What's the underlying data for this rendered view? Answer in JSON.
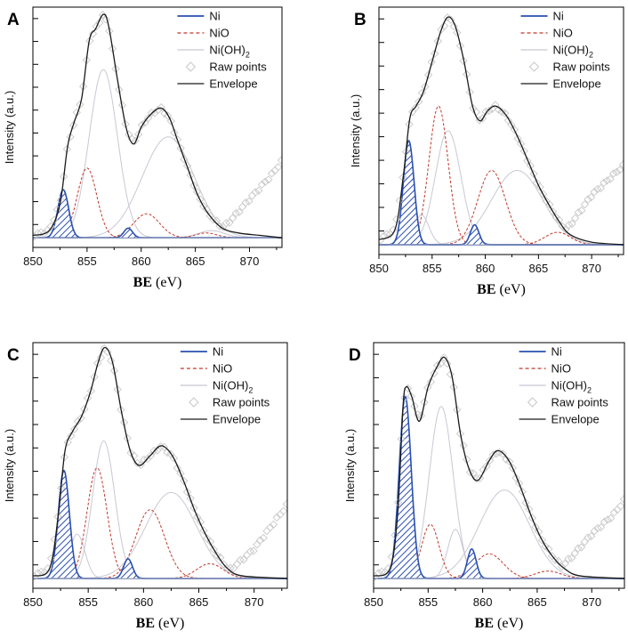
{
  "figure": {
    "common": {
      "x_range": [
        850,
        873
      ],
      "x_ticks": [
        "850",
        "855",
        "860",
        "865",
        "870"
      ],
      "xlabel_bold": "BE",
      "xlabel_unit": "(eV)",
      "ylabel": "Intensity (a.u.)",
      "legend": [
        {
          "key": "Ni",
          "label": "Ni",
          "color": "#2a4fb0",
          "style": "solid"
        },
        {
          "key": "NiO",
          "label": "NiO",
          "color": "#c0392b",
          "style": "dashed"
        },
        {
          "key": "NiOH",
          "label": "Ni(OH)",
          "subscript": "2",
          "color": "#c8c8d4",
          "style": "solid"
        },
        {
          "key": "raw",
          "label": "Raw points",
          "color": "#c8c8c8",
          "style": "diamond"
        },
        {
          "key": "env",
          "label": "Envelope",
          "color": "#1a1a1a",
          "style": "solid"
        }
      ]
    }
  },
  "chart_data": [
    {
      "type": "line",
      "panel": "A",
      "title": "",
      "xlabel": "BE (eV)",
      "ylabel": "Intensity (a.u.)",
      "xlim": [
        850,
        873
      ],
      "ylim": [
        0,
        1.0
      ],
      "baseline": 0.04,
      "components": {
        "Ni": [
          {
            "c": 852.8,
            "h": 0.2,
            "w": 0.5
          },
          {
            "c": 858.8,
            "h": 0.04,
            "w": 0.4
          }
        ],
        "NiO": [
          {
            "c": 855.0,
            "h": 0.29,
            "w": 0.9
          },
          {
            "c": 860.5,
            "h": 0.1,
            "w": 1.2
          },
          {
            "c": 866.0,
            "h": 0.02,
            "w": 1.0
          }
        ],
        "NiOH": [
          {
            "c": 856.5,
            "h": 0.7,
            "w": 1.3
          },
          {
            "c": 862.5,
            "h": 0.42,
            "w": 2.4
          },
          {
            "c": 866.5,
            "h": 0.03,
            "w": 1.2
          }
        ]
      },
      "envelope": [
        [
          850.0,
          0.05
        ],
        [
          851.5,
          0.07
        ],
        [
          852.5,
          0.18
        ],
        [
          853.2,
          0.42
        ],
        [
          853.8,
          0.52
        ],
        [
          854.5,
          0.62
        ],
        [
          855.2,
          0.86
        ],
        [
          855.8,
          0.91
        ],
        [
          856.5,
          0.97
        ],
        [
          857.0,
          0.92
        ],
        [
          857.8,
          0.7
        ],
        [
          858.6,
          0.5
        ],
        [
          859.3,
          0.43
        ],
        [
          860.0,
          0.5
        ],
        [
          860.8,
          0.55
        ],
        [
          861.8,
          0.58
        ],
        [
          862.6,
          0.54
        ],
        [
          863.4,
          0.44
        ],
        [
          864.3,
          0.33
        ],
        [
          865.2,
          0.22
        ],
        [
          866.2,
          0.14
        ],
        [
          867.5,
          0.08
        ],
        [
          869.0,
          0.06
        ],
        [
          871.0,
          0.05
        ],
        [
          873.0,
          0.04
        ]
      ],
      "raw_tail_rise": [
        [
          866.0,
          0.04
        ],
        [
          868.0,
          0.1
        ],
        [
          870.0,
          0.2
        ],
        [
          872.0,
          0.3
        ],
        [
          873.0,
          0.36
        ]
      ]
    },
    {
      "type": "line",
      "panel": "B",
      "title": "",
      "xlabel": "BE (eV)",
      "ylabel": "Intensity (a.u.)",
      "xlim": [
        850,
        873
      ],
      "ylim": [
        0,
        1.0
      ],
      "baseline": 0.04,
      "components": {
        "Ni": [
          {
            "c": 852.8,
            "h": 0.42,
            "w": 0.5
          },
          {
            "c": 859.0,
            "h": 0.08,
            "w": 0.4
          }
        ],
        "NiO": [
          {
            "c": 855.6,
            "h": 0.56,
            "w": 0.9
          },
          {
            "c": 860.6,
            "h": 0.3,
            "w": 1.3
          },
          {
            "c": 866.8,
            "h": 0.05,
            "w": 1.2
          }
        ],
        "NiOH": [
          {
            "c": 856.5,
            "h": 0.46,
            "w": 1.2
          },
          {
            "c": 863.0,
            "h": 0.3,
            "w": 2.4
          },
          {
            "c": 854.0,
            "h": 0.12,
            "w": 0.7
          }
        ]
      },
      "envelope": [
        [
          850.0,
          0.06
        ],
        [
          851.5,
          0.1
        ],
        [
          852.3,
          0.32
        ],
        [
          852.9,
          0.55
        ],
        [
          853.5,
          0.6
        ],
        [
          854.2,
          0.66
        ],
        [
          855.0,
          0.78
        ],
        [
          855.8,
          0.9
        ],
        [
          856.5,
          0.96
        ],
        [
          857.2,
          0.92
        ],
        [
          858.0,
          0.78
        ],
        [
          858.8,
          0.6
        ],
        [
          859.5,
          0.54
        ],
        [
          860.2,
          0.58
        ],
        [
          861.0,
          0.6
        ],
        [
          862.0,
          0.56
        ],
        [
          863.0,
          0.48
        ],
        [
          864.0,
          0.38
        ],
        [
          865.0,
          0.28
        ],
        [
          866.0,
          0.2
        ],
        [
          867.0,
          0.13
        ],
        [
          868.0,
          0.08
        ],
        [
          870.0,
          0.05
        ],
        [
          873.0,
          0.04
        ]
      ],
      "raw_tail_rise": [
        [
          866.0,
          0.04
        ],
        [
          868.0,
          0.12
        ],
        [
          870.0,
          0.24
        ],
        [
          872.0,
          0.32
        ],
        [
          873.0,
          0.36
        ]
      ]
    },
    {
      "type": "line",
      "panel": "C",
      "title": "",
      "xlabel": "BE (eV)",
      "ylabel": "Intensity (a.u.)",
      "xlim": [
        850,
        873
      ],
      "ylim": [
        0,
        1.0
      ],
      "baseline": 0.04,
      "components": {
        "Ni": [
          {
            "c": 852.8,
            "h": 0.44,
            "w": 0.5
          },
          {
            "c": 858.6,
            "h": 0.08,
            "w": 0.4
          }
        ],
        "NiO": [
          {
            "c": 855.8,
            "h": 0.45,
            "w": 0.9
          },
          {
            "c": 860.6,
            "h": 0.28,
            "w": 1.3
          },
          {
            "c": 866.0,
            "h": 0.06,
            "w": 1.2
          }
        ],
        "NiOH": [
          {
            "c": 856.4,
            "h": 0.56,
            "w": 1.0
          },
          {
            "c": 862.5,
            "h": 0.35,
            "w": 2.3
          },
          {
            "c": 854.0,
            "h": 0.18,
            "w": 0.7
          }
        ]
      },
      "envelope": [
        [
          850.0,
          0.05
        ],
        [
          851.5,
          0.08
        ],
        [
          852.3,
          0.3
        ],
        [
          852.9,
          0.56
        ],
        [
          853.6,
          0.64
        ],
        [
          854.4,
          0.7
        ],
        [
          855.2,
          0.8
        ],
        [
          855.9,
          0.92
        ],
        [
          856.5,
          0.98
        ],
        [
          857.2,
          0.92
        ],
        [
          858.0,
          0.72
        ],
        [
          858.8,
          0.56
        ],
        [
          859.6,
          0.5
        ],
        [
          860.6,
          0.54
        ],
        [
          861.6,
          0.58
        ],
        [
          862.6,
          0.54
        ],
        [
          863.6,
          0.44
        ],
        [
          864.6,
          0.32
        ],
        [
          865.6,
          0.22
        ],
        [
          866.6,
          0.14
        ],
        [
          867.6,
          0.08
        ],
        [
          869.0,
          0.05
        ],
        [
          873.0,
          0.04
        ]
      ],
      "raw_tail_rise": [
        [
          866.0,
          0.04
        ],
        [
          868.0,
          0.08
        ],
        [
          870.0,
          0.16
        ],
        [
          872.0,
          0.28
        ],
        [
          873.0,
          0.34
        ]
      ]
    },
    {
      "type": "line",
      "panel": "D",
      "title": "",
      "xlabel": "BE (eV)",
      "ylabel": "Intensity (a.u.)",
      "xlim": [
        850,
        873
      ],
      "ylim": [
        0,
        1.0
      ],
      "baseline": 0.04,
      "components": {
        "Ni": [
          {
            "c": 852.9,
            "h": 0.74,
            "w": 0.55
          },
          {
            "c": 859.0,
            "h": 0.12,
            "w": 0.4
          }
        ],
        "NiO": [
          {
            "c": 855.2,
            "h": 0.22,
            "w": 0.8
          },
          {
            "c": 860.6,
            "h": 0.1,
            "w": 1.3
          },
          {
            "c": 866.0,
            "h": 0.03,
            "w": 1.2
          }
        ],
        "NiOH": [
          {
            "c": 856.2,
            "h": 0.7,
            "w": 1.1
          },
          {
            "c": 862.0,
            "h": 0.36,
            "w": 2.3
          },
          {
            "c": 857.5,
            "h": 0.2,
            "w": 0.7
          }
        ]
      },
      "envelope": [
        [
          850.0,
          0.05
        ],
        [
          851.5,
          0.08
        ],
        [
          852.2,
          0.3
        ],
        [
          852.7,
          0.74
        ],
        [
          853.0,
          0.82
        ],
        [
          853.5,
          0.78
        ],
        [
          854.2,
          0.68
        ],
        [
          855.0,
          0.82
        ],
        [
          855.8,
          0.9
        ],
        [
          856.5,
          0.94
        ],
        [
          857.2,
          0.86
        ],
        [
          858.0,
          0.62
        ],
        [
          858.8,
          0.48
        ],
        [
          859.6,
          0.44
        ],
        [
          860.6,
          0.52
        ],
        [
          861.4,
          0.56
        ],
        [
          862.4,
          0.52
        ],
        [
          863.4,
          0.42
        ],
        [
          864.4,
          0.3
        ],
        [
          865.4,
          0.2
        ],
        [
          866.4,
          0.13
        ],
        [
          867.5,
          0.08
        ],
        [
          869.0,
          0.05
        ],
        [
          873.0,
          0.04
        ]
      ],
      "raw_tail_rise": [
        [
          866.0,
          0.04
        ],
        [
          868.0,
          0.12
        ],
        [
          870.0,
          0.22
        ],
        [
          872.0,
          0.3
        ],
        [
          873.0,
          0.36
        ]
      ]
    }
  ]
}
